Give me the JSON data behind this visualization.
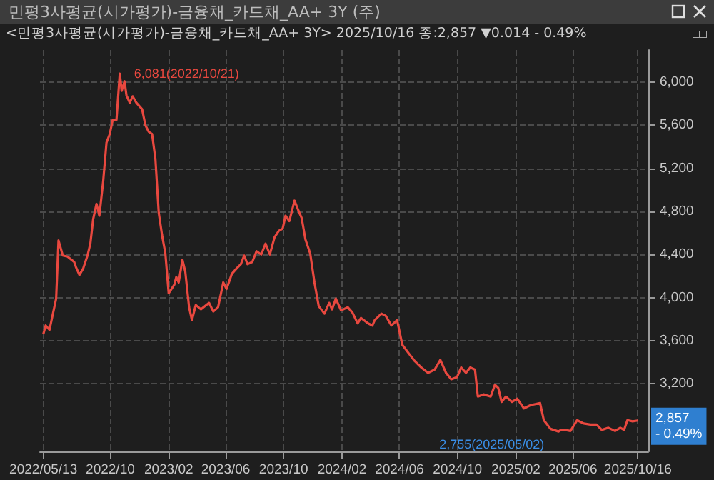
{
  "chart_data": {
    "type": "line",
    "title": "민평3사평균(시가평가)-금융채_카드채_AA+ 3Y (주)",
    "subtitle": "<민평3사평균(시가평가)-금융채_카드채_AA+ 3Y> 2025/10/16 종:2,857 ▼0.014 - 0.49%",
    "x": [
      "2022-05-13",
      "2022-05-18",
      "2022-05-26",
      "2022-06-09",
      "2022-06-14",
      "2022-06-23",
      "2022-07-03",
      "2022-07-17",
      "2022-07-21",
      "2022-07-28",
      "2022-08-05",
      "2022-08-14",
      "2022-08-20",
      "2022-08-26",
      "2022-09-02",
      "2022-09-08",
      "2022-09-16",
      "2022-09-23",
      "2022-09-30",
      "2022-10-06",
      "2022-10-14",
      "2022-10-21",
      "2022-10-25",
      "2022-10-31",
      "2022-11-04",
      "2022-11-11",
      "2022-11-17",
      "2022-11-25",
      "2022-12-07",
      "2022-12-14",
      "2022-12-21",
      "2022-12-28",
      "2023-01-04",
      "2023-01-11",
      "2023-01-18",
      "2023-01-25",
      "2023-02-01",
      "2023-02-13",
      "2023-02-17",
      "2023-02-22",
      "2023-03-02",
      "2023-03-08",
      "2023-03-16",
      "2023-03-22",
      "2023-03-30",
      "2023-04-10",
      "2023-04-27",
      "2023-05-06",
      "2023-05-16",
      "2023-05-27",
      "2023-06-03",
      "2023-06-14",
      "2023-06-24",
      "2023-07-03",
      "2023-07-10",
      "2023-07-17",
      "2023-07-27",
      "2023-08-05",
      "2023-08-15",
      "2023-08-24",
      "2023-09-02",
      "2023-09-12",
      "2023-09-21",
      "2023-09-29",
      "2023-10-05",
      "2023-10-13",
      "2023-10-24",
      "2023-11-01",
      "2023-11-08",
      "2023-11-16",
      "2023-11-26",
      "2023-12-05",
      "2023-12-14",
      "2023-12-26",
      "2024-01-05",
      "2024-01-11",
      "2024-01-19",
      "2024-01-30",
      "2024-02-13",
      "2024-02-23",
      "2024-03-05",
      "2024-03-12",
      "2024-03-27",
      "2024-04-05",
      "2024-04-10",
      "2024-04-24",
      "2024-05-03",
      "2024-05-15",
      "2024-05-27",
      "2024-06-07",
      "2024-06-19",
      "2024-07-03",
      "2024-07-17",
      "2024-07-31",
      "2024-08-14",
      "2024-08-26",
      "2024-09-07",
      "2024-09-18",
      "2024-09-30",
      "2024-10-09",
      "2024-10-19",
      "2024-10-28",
      "2024-11-07",
      "2024-11-13",
      "2024-11-25",
      "2024-12-10",
      "2024-12-19",
      "2024-12-26",
      "2025-01-02",
      "2025-01-11",
      "2025-01-24",
      "2025-02-04",
      "2025-02-18",
      "2025-03-04",
      "2025-03-24",
      "2025-04-01",
      "2025-04-15",
      "2025-05-02",
      "2025-05-07",
      "2025-05-16",
      "2025-05-27",
      "2025-06-10",
      "2025-06-24",
      "2025-07-08",
      "2025-07-21",
      "2025-08-01",
      "2025-08-15",
      "2025-08-29",
      "2025-09-09",
      "2025-09-17",
      "2025-09-24",
      "2025-10-05",
      "2025-10-16"
    ],
    "series": [
      {
        "color": "#e8483f",
        "values": [
          3660,
          3740,
          3700,
          3990,
          4530,
          4390,
          4380,
          4330,
          4280,
          4210,
          4270,
          4390,
          4500,
          4730,
          4870,
          4760,
          5080,
          5440,
          5520,
          5650,
          5650,
          6081,
          5920,
          6010,
          5880,
          5810,
          5870,
          5810,
          5750,
          5600,
          5540,
          5520,
          5290,
          4790,
          4580,
          4410,
          4040,
          4120,
          4190,
          4140,
          4350,
          4240,
          3910,
          3790,
          3930,
          3890,
          3950,
          3870,
          3910,
          4140,
          4080,
          4220,
          4270,
          4310,
          4390,
          4310,
          4330,
          4430,
          4400,
          4500,
          4400,
          4560,
          4620,
          4640,
          4760,
          4710,
          4900,
          4810,
          4740,
          4540,
          4410,
          4140,
          3920,
          3850,
          3950,
          3890,
          3990,
          3880,
          3910,
          3860,
          3760,
          3810,
          3760,
          3740,
          3790,
          3850,
          3830,
          3740,
          3790,
          3560,
          3490,
          3410,
          3350,
          3300,
          3330,
          3420,
          3300,
          3240,
          3260,
          3350,
          3300,
          3350,
          3330,
          3080,
          3100,
          3080,
          3190,
          3160,
          3030,
          3080,
          3030,
          3060,
          2970,
          3000,
          3020,
          2860,
          2780,
          2755,
          2770,
          2770,
          2760,
          2860,
          2830,
          2820,
          2820,
          2770,
          2790,
          2760,
          2790,
          2770,
          2860,
          2850,
          2857
        ]
      }
    ],
    "xlim": [
      "2022-05-06",
      "2025-11-07"
    ],
    "xticks": [
      {
        "value": "2022-05-13",
        "label": "2022/05/13"
      },
      {
        "value": "2022-10-01",
        "label": "2022/10"
      },
      {
        "value": "2023-02-01",
        "label": "2023/02"
      },
      {
        "value": "2023-06-01",
        "label": "2023/06"
      },
      {
        "value": "2023-10-01",
        "label": "2023/10"
      },
      {
        "value": "2024-02-01",
        "label": "2024/02"
      },
      {
        "value": "2024-06-01",
        "label": "2024/06"
      },
      {
        "value": "2024-10-01",
        "label": "2024/10"
      },
      {
        "value": "2025-02-01",
        "label": "2025/02"
      },
      {
        "value": "2025-06-01",
        "label": "2025/06"
      },
      {
        "value": "2025-10-16",
        "label": "2025/10/16"
      }
    ],
    "ylim": [
      2570,
      6300
    ],
    "yticks": [
      {
        "value": 3200,
        "label": "3,200"
      },
      {
        "value": 3600,
        "label": "3,600"
      },
      {
        "value": 4000,
        "label": "4,000"
      },
      {
        "value": 4400,
        "label": "4,400"
      },
      {
        "value": 4800,
        "label": "4,800"
      },
      {
        "value": 5200,
        "label": "5,200"
      },
      {
        "value": 5600,
        "label": "5,600"
      },
      {
        "value": 6000,
        "label": "6,000"
      }
    ],
    "annotations": [
      {
        "text": "6,081(2022/10/21)",
        "x": "2022-10-21",
        "y": 6081
      },
      {
        "text": "2,755(2025/05/02)",
        "x": "2025-05-02",
        "y": 2755
      },
      {
        "text": "2,857\n- 0.49%",
        "x": "2025-10-16",
        "y": 2857
      }
    ],
    "grid": true,
    "marker": "none",
    "line_style": "solid"
  }
}
